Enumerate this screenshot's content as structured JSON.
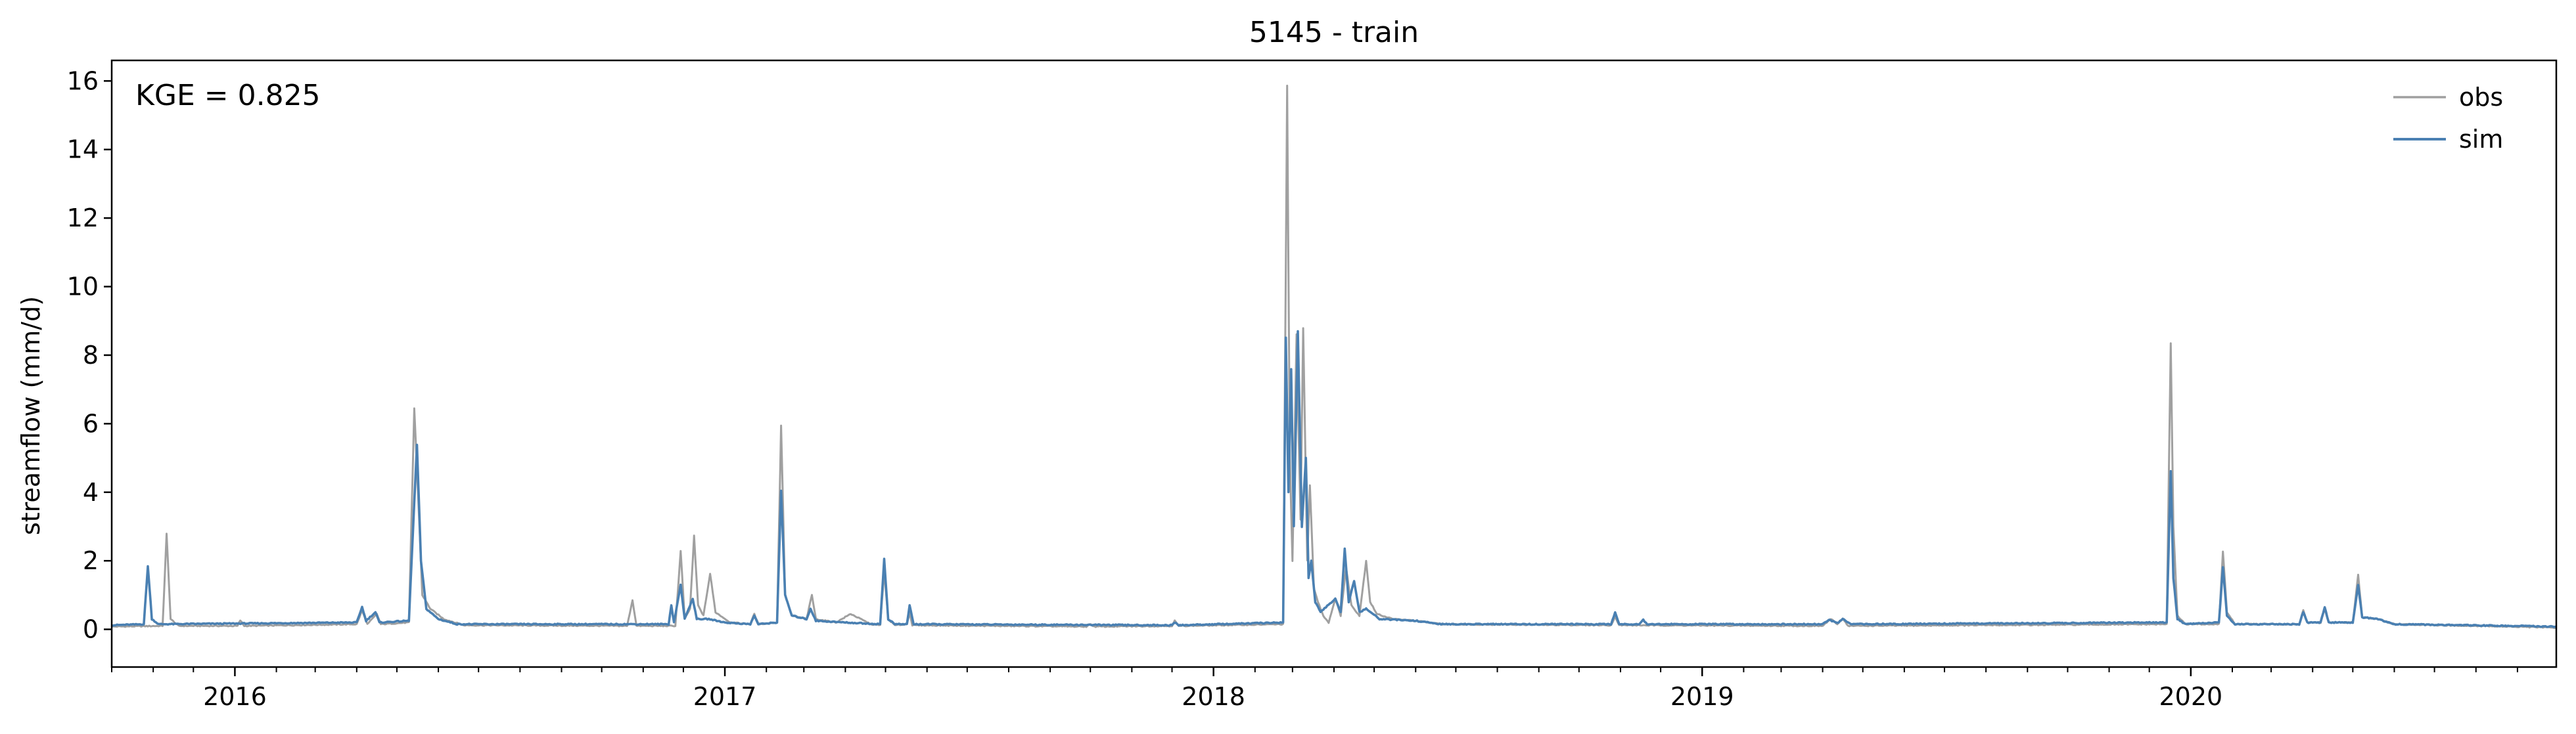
{
  "chart_data": {
    "type": "line",
    "title": "5145 - train",
    "xlabel": "",
    "ylabel": "streamflow (mm/d)",
    "annotation": "KGE = 0.825",
    "x_range": [
      "2015-10-01",
      "2020-09-30"
    ],
    "ylim": [
      -1.1,
      16.6
    ],
    "y_ticks": [
      0,
      2,
      4,
      6,
      8,
      10,
      12,
      14,
      16
    ],
    "x_ticks": [
      {
        "date": "2016-01-01",
        "label": "2016"
      },
      {
        "date": "2017-01-01",
        "label": "2017"
      },
      {
        "date": "2018-01-01",
        "label": "2018"
      },
      {
        "date": "2019-01-01",
        "label": "2019"
      },
      {
        "date": "2020-01-01",
        "label": "2020"
      }
    ],
    "grid": false,
    "legend": "top-right",
    "series": [
      {
        "name": "obs",
        "color": "#a0a0a0",
        "baseline": 0.06,
        "points": [
          [
            "2015-10-01",
            0.08
          ],
          [
            "2015-11-08",
            0.1
          ],
          [
            "2015-11-11",
            2.78
          ],
          [
            "2015-11-14",
            0.3
          ],
          [
            "2015-11-20",
            0.1
          ],
          [
            "2016-01-03",
            0.1
          ],
          [
            "2016-01-05",
            0.26
          ],
          [
            "2016-01-08",
            0.1
          ],
          [
            "2016-04-01",
            0.15
          ],
          [
            "2016-04-05",
            0.55
          ],
          [
            "2016-04-09",
            0.15
          ],
          [
            "2016-04-16",
            0.45
          ],
          [
            "2016-04-19",
            0.15
          ],
          [
            "2016-05-10",
            0.2
          ],
          [
            "2016-05-14",
            6.45
          ],
          [
            "2016-05-17",
            3.8
          ],
          [
            "2016-05-20",
            1.0
          ],
          [
            "2016-05-26",
            0.6
          ],
          [
            "2016-06-05",
            0.3
          ],
          [
            "2016-06-20",
            0.12
          ],
          [
            "2016-10-20",
            0.1
          ],
          [
            "2016-10-24",
            0.85
          ],
          [
            "2016-10-27",
            0.1
          ],
          [
            "2016-11-25",
            0.1
          ],
          [
            "2016-11-29",
            2.28
          ],
          [
            "2016-12-02",
            0.3
          ],
          [
            "2016-12-06",
            0.6
          ],
          [
            "2016-12-09",
            2.72
          ],
          [
            "2016-12-12",
            0.7
          ],
          [
            "2016-12-16",
            0.4
          ],
          [
            "2016-12-21",
            1.62
          ],
          [
            "2016-12-25",
            0.5
          ],
          [
            "2017-01-05",
            0.2
          ],
          [
            "2017-01-20",
            0.15
          ],
          [
            "2017-01-23",
            0.45
          ],
          [
            "2017-01-26",
            0.15
          ],
          [
            "2017-02-09",
            0.2
          ],
          [
            "2017-02-12",
            5.95
          ],
          [
            "2017-02-15",
            1.0
          ],
          [
            "2017-02-20",
            0.4
          ],
          [
            "2017-03-03",
            0.3
          ],
          [
            "2017-03-07",
            1.0
          ],
          [
            "2017-03-10",
            0.3
          ],
          [
            "2017-03-25",
            0.2
          ],
          [
            "2017-04-05",
            0.45
          ],
          [
            "2017-04-20",
            0.15
          ],
          [
            "2017-04-27",
            0.12
          ],
          [
            "2017-04-30",
            1.7
          ],
          [
            "2017-05-03",
            0.3
          ],
          [
            "2017-05-08",
            0.12
          ],
          [
            "2017-05-17",
            0.15
          ],
          [
            "2017-05-19",
            0.5
          ],
          [
            "2017-05-21",
            0.12
          ],
          [
            "2017-09-28",
            0.08
          ],
          [
            "2017-10-01",
            0.16
          ],
          [
            "2017-10-04",
            0.08
          ],
          [
            "2017-12-01",
            0.1
          ],
          [
            "2017-12-03",
            0.25
          ],
          [
            "2017-12-06",
            0.1
          ],
          [
            "2018-02-22",
            0.15
          ],
          [
            "2018-02-25",
            15.85
          ],
          [
            "2018-02-27",
            5.0
          ],
          [
            "2018-03-01",
            2.0
          ],
          [
            "2018-03-04",
            8.6
          ],
          [
            "2018-03-07",
            3.2
          ],
          [
            "2018-03-09",
            8.8
          ],
          [
            "2018-03-12",
            2.0
          ],
          [
            "2018-03-14",
            4.2
          ],
          [
            "2018-03-17",
            1.2
          ],
          [
            "2018-03-20",
            0.8
          ],
          [
            "2018-03-24",
            0.4
          ],
          [
            "2018-03-28",
            0.2
          ],
          [
            "2018-04-02",
            0.9
          ],
          [
            "2018-04-06",
            0.4
          ],
          [
            "2018-04-10",
            1.8
          ],
          [
            "2018-04-14",
            0.7
          ],
          [
            "2018-04-20",
            0.4
          ],
          [
            "2018-04-25",
            2.0
          ],
          [
            "2018-04-28",
            0.8
          ],
          [
            "2018-05-03",
            0.45
          ],
          [
            "2018-05-15",
            0.3
          ],
          [
            "2018-06-01",
            0.25
          ],
          [
            "2018-06-20",
            0.15
          ],
          [
            "2018-10-25",
            0.12
          ],
          [
            "2018-10-28",
            0.38
          ],
          [
            "2018-10-31",
            0.12
          ],
          [
            "2019-04-01",
            0.1
          ],
          [
            "2019-04-07",
            0.3
          ],
          [
            "2019-04-12",
            0.15
          ],
          [
            "2019-04-16",
            0.32
          ],
          [
            "2019-04-20",
            0.1
          ],
          [
            "2019-12-14",
            0.15
          ],
          [
            "2019-12-17",
            8.35
          ],
          [
            "2019-12-19",
            3.0
          ],
          [
            "2019-12-22",
            0.4
          ],
          [
            "2019-12-28",
            0.15
          ],
          [
            "2020-01-22",
            0.15
          ],
          [
            "2020-01-25",
            2.28
          ],
          [
            "2020-01-28",
            0.5
          ],
          [
            "2020-02-03",
            0.15
          ],
          [
            "2020-03-22",
            0.15
          ],
          [
            "2020-03-25",
            0.55
          ],
          [
            "2020-03-28",
            0.2
          ],
          [
            "2020-04-07",
            0.2
          ],
          [
            "2020-04-10",
            0.6
          ],
          [
            "2020-04-13",
            0.2
          ],
          [
            "2020-05-01",
            0.2
          ],
          [
            "2020-05-05",
            1.6
          ],
          [
            "2020-05-08",
            0.35
          ],
          [
            "2020-05-20",
            0.3
          ],
          [
            "2020-06-01",
            0.15
          ],
          [
            "2020-09-30",
            0.05
          ]
        ]
      },
      {
        "name": "sim",
        "color": "#4a80b2",
        "baseline": 0.12,
        "points": [
          [
            "2015-10-01",
            0.12
          ],
          [
            "2015-10-25",
            0.15
          ],
          [
            "2015-10-28",
            1.85
          ],
          [
            "2015-10-31",
            0.3
          ],
          [
            "2015-11-05",
            0.15
          ],
          [
            "2016-04-01",
            0.2
          ],
          [
            "2016-04-05",
            0.65
          ],
          [
            "2016-04-08",
            0.25
          ],
          [
            "2016-04-15",
            0.5
          ],
          [
            "2016-04-18",
            0.2
          ],
          [
            "2016-05-10",
            0.25
          ],
          [
            "2016-05-14",
            3.7
          ],
          [
            "2016-05-16",
            5.38
          ],
          [
            "2016-05-19",
            2.0
          ],
          [
            "2016-05-23",
            0.6
          ],
          [
            "2016-06-01",
            0.3
          ],
          [
            "2016-06-15",
            0.15
          ],
          [
            "2016-11-20",
            0.15
          ],
          [
            "2016-11-22",
            0.7
          ],
          [
            "2016-11-24",
            0.2
          ],
          [
            "2016-11-29",
            1.3
          ],
          [
            "2016-12-02",
            0.3
          ],
          [
            "2016-12-08",
            0.9
          ],
          [
            "2016-12-11",
            0.3
          ],
          [
            "2016-12-20",
            0.3
          ],
          [
            "2017-01-01",
            0.2
          ],
          [
            "2017-01-20",
            0.15
          ],
          [
            "2017-01-23",
            0.4
          ],
          [
            "2017-01-26",
            0.15
          ],
          [
            "2017-02-09",
            0.2
          ],
          [
            "2017-02-12",
            4.05
          ],
          [
            "2017-02-15",
            1.0
          ],
          [
            "2017-02-20",
            0.4
          ],
          [
            "2017-03-03",
            0.3
          ],
          [
            "2017-03-06",
            0.6
          ],
          [
            "2017-03-10",
            0.25
          ],
          [
            "2017-04-01",
            0.2
          ],
          [
            "2017-04-27",
            0.15
          ],
          [
            "2017-04-30",
            2.05
          ],
          [
            "2017-05-03",
            0.3
          ],
          [
            "2017-05-08",
            0.15
          ],
          [
            "2017-05-17",
            0.15
          ],
          [
            "2017-05-19",
            0.7
          ],
          [
            "2017-05-22",
            0.15
          ],
          [
            "2017-12-01",
            0.12
          ],
          [
            "2017-12-03",
            0.2
          ],
          [
            "2017-12-06",
            0.12
          ],
          [
            "2018-02-22",
            0.2
          ],
          [
            "2018-02-24",
            8.5
          ],
          [
            "2018-02-26",
            4.0
          ],
          [
            "2018-02-28",
            7.6
          ],
          [
            "2018-03-02",
            3.0
          ],
          [
            "2018-03-05",
            8.7
          ],
          [
            "2018-03-08",
            3.0
          ],
          [
            "2018-03-11",
            5.0
          ],
          [
            "2018-03-13",
            1.5
          ],
          [
            "2018-03-15",
            2.0
          ],
          [
            "2018-03-18",
            0.8
          ],
          [
            "2018-03-22",
            0.5
          ],
          [
            "2018-04-02",
            0.9
          ],
          [
            "2018-04-06",
            0.5
          ],
          [
            "2018-04-09",
            2.35
          ],
          [
            "2018-04-12",
            0.8
          ],
          [
            "2018-04-16",
            1.4
          ],
          [
            "2018-04-20",
            0.5
          ],
          [
            "2018-04-25",
            0.6
          ],
          [
            "2018-05-05",
            0.3
          ],
          [
            "2018-06-01",
            0.25
          ],
          [
            "2018-06-20",
            0.15
          ],
          [
            "2018-10-25",
            0.15
          ],
          [
            "2018-10-28",
            0.5
          ],
          [
            "2018-10-31",
            0.15
          ],
          [
            "2018-11-15",
            0.15
          ],
          [
            "2018-11-18",
            0.28
          ],
          [
            "2018-11-21",
            0.15
          ],
          [
            "2019-04-01",
            0.15
          ],
          [
            "2019-04-06",
            0.28
          ],
          [
            "2019-04-12",
            0.18
          ],
          [
            "2019-04-16",
            0.3
          ],
          [
            "2019-04-22",
            0.15
          ],
          [
            "2019-12-14",
            0.2
          ],
          [
            "2019-12-17",
            4.6
          ],
          [
            "2019-12-19",
            1.5
          ],
          [
            "2019-12-22",
            0.3
          ],
          [
            "2019-12-28",
            0.15
          ],
          [
            "2020-01-22",
            0.2
          ],
          [
            "2020-01-25",
            1.82
          ],
          [
            "2020-01-28",
            0.4
          ],
          [
            "2020-02-03",
            0.15
          ],
          [
            "2020-03-22",
            0.15
          ],
          [
            "2020-03-25",
            0.5
          ],
          [
            "2020-03-28",
            0.2
          ],
          [
            "2020-04-07",
            0.2
          ],
          [
            "2020-04-10",
            0.65
          ],
          [
            "2020-04-13",
            0.2
          ],
          [
            "2020-05-01",
            0.2
          ],
          [
            "2020-05-05",
            1.3
          ],
          [
            "2020-05-08",
            0.35
          ],
          [
            "2020-05-20",
            0.3
          ],
          [
            "2020-06-01",
            0.15
          ],
          [
            "2020-09-30",
            0.08
          ]
        ]
      }
    ]
  }
}
